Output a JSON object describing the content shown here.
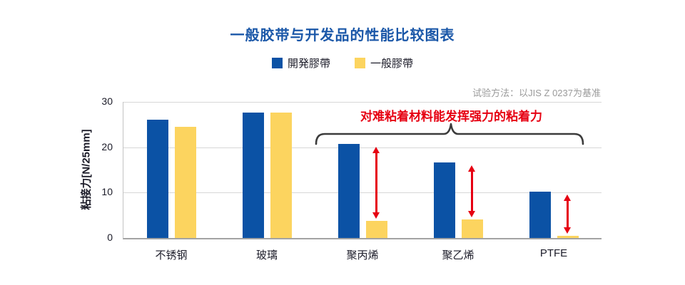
{
  "title": "一般胶带与开发品的性能比较图表",
  "note": "试验方法：以JIS Z 0237为基准",
  "annotation": "对难粘着材料能发挥强力的粘着力",
  "legend": [
    {
      "label": "開発膠帶",
      "color": "#0b52a5"
    },
    {
      "label": "一般膠帶",
      "color": "#fcd45f"
    }
  ],
  "colors": {
    "title_blue": "#1a57a8",
    "developed_blue": "#0b52a5",
    "general_yellow": "#fcd45f",
    "highlight_red": "#e60012",
    "brace_gray": "#3c3c3c",
    "note_gray": "#9a9a9a",
    "axis_text": "#1b1b28"
  },
  "chart_data": {
    "type": "bar",
    "categories": [
      "不锈钢",
      "玻璃",
      "聚丙烯",
      "聚乙烯",
      "PTFE"
    ],
    "series": [
      {
        "name": "開発膠帶",
        "color": "#0b52a5",
        "values": [
          26.0,
          27.7,
          20.8,
          16.7,
          10.2
        ]
      },
      {
        "name": "一般膠帶",
        "color": "#fcd45f",
        "values": [
          24.5,
          27.7,
          3.8,
          4.1,
          0.4
        ]
      }
    ],
    "title": "一般胶带与开发品的性能比较图表",
    "xlabel": "",
    "ylabel": "粘接力[N/25mm]",
    "ylim": [
      0,
      30
    ],
    "yticks": [
      0,
      10,
      20,
      30
    ],
    "grid": true,
    "legend_position": "top-center",
    "annotation": "对难粘着材料能发挥强力的粘着力",
    "gap_arrows": {
      "categories": [
        "聚丙烯",
        "聚乙烯",
        "PTFE"
      ],
      "color": "#e60012"
    }
  }
}
